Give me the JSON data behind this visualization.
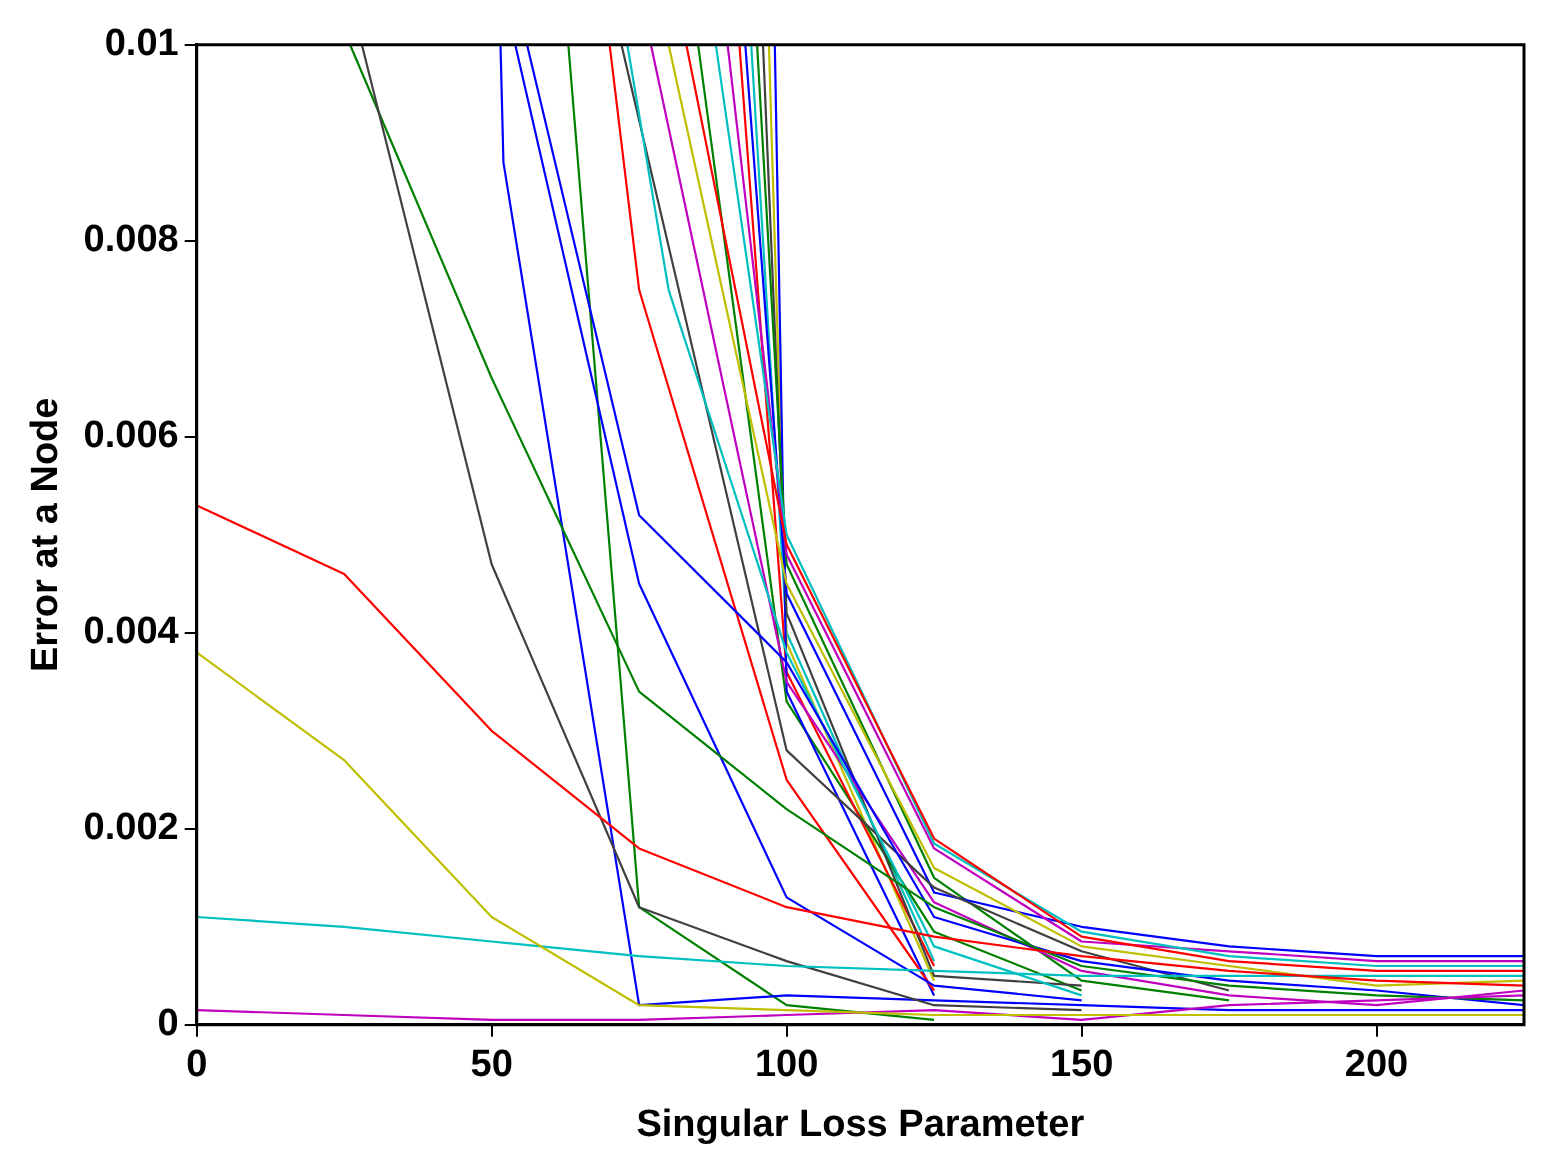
{
  "chart_data": {
    "type": "line",
    "xlabel": "Singular Loss Parameter",
    "ylabel": "Error at a Node",
    "xlim": [
      0,
      225
    ],
    "ylim": [
      0,
      0.01
    ],
    "xticks": [
      0,
      50,
      100,
      150,
      200
    ],
    "yticks": [
      0,
      0.002,
      0.004,
      0.006,
      0.008,
      0.01
    ],
    "series": [
      {
        "color": "#ff0000",
        "x": [
          0,
          25,
          50,
          75,
          100,
          125,
          150,
          175,
          200,
          225
        ],
        "values": [
          0.0053,
          0.0046,
          0.003,
          0.0018,
          0.0012,
          0.0009,
          0.0007,
          0.00055,
          0.00045,
          0.0004
        ]
      },
      {
        "color": "#bfbf00",
        "x": [
          0,
          25,
          50,
          75,
          100,
          125,
          150,
          175,
          200,
          225
        ],
        "values": [
          0.0038,
          0.0027,
          0.0011,
          0.0002,
          0.00015,
          0.0001,
          0.0001,
          0.0001,
          0.0001,
          0.0001
        ]
      },
      {
        "color": "#00bfbf",
        "x": [
          0,
          25,
          50,
          75,
          100,
          125,
          150,
          175,
          200,
          225
        ],
        "values": [
          0.0011,
          0.001,
          0.00085,
          0.0007,
          0.0006,
          0.00055,
          0.0005,
          0.0005,
          0.0005,
          0.0005
        ]
      },
      {
        "color": "#bf00bf",
        "x": [
          0,
          25,
          50,
          75,
          100,
          125,
          150,
          175,
          200,
          225
        ],
        "values": [
          0.00015,
          0.0001,
          5e-05,
          5e-05,
          0.0001,
          0.00015,
          5e-05,
          0.0002,
          0.00025,
          0.0003
        ]
      },
      {
        "color": "#404040",
        "x": [
          28,
          50,
          75,
          100,
          125,
          150
        ],
        "values": [
          0.01,
          0.0047,
          0.0012,
          0.00065,
          0.0002,
          0.00015
        ]
      },
      {
        "color": "#008000",
        "x": [
          26,
          50,
          75,
          100,
          125,
          150,
          175,
          200,
          225
        ],
        "values": [
          0.01,
          0.0066,
          0.0034,
          0.0022,
          0.0012,
          0.0006,
          0.0004,
          0.0003,
          0.00025
        ]
      },
      {
        "color": "#0000ff",
        "x": [
          51.5,
          52,
          75,
          100,
          125,
          150,
          175,
          200,
          225
        ],
        "values": [
          0.01,
          0.0088,
          0.0002,
          0.0003,
          0.00025,
          0.0002,
          0.00015,
          0.00015,
          0.00015
        ]
      },
      {
        "color": "#0000ff",
        "x": [
          54,
          75,
          100,
          125,
          150
        ],
        "values": [
          0.01,
          0.0045,
          0.0013,
          0.0004,
          0.00025
        ]
      },
      {
        "color": "#0000ff",
        "x": [
          56,
          75,
          100,
          125,
          150,
          175,
          200,
          225
        ],
        "values": [
          0.01,
          0.0052,
          0.0037,
          0.0011,
          0.00065,
          0.00045,
          0.00035,
          0.0002
        ]
      },
      {
        "color": "#008000",
        "x": [
          63,
          75,
          100,
          125
        ],
        "values": [
          0.01,
          0.0012,
          0.0002,
          5e-05
        ]
      },
      {
        "color": "#ff0000",
        "x": [
          70,
          75,
          100,
          125
        ],
        "values": [
          0.01,
          0.0075,
          0.0025,
          0.00035
        ]
      },
      {
        "color": "#00bfbf",
        "x": [
          73,
          80,
          100,
          125,
          150
        ],
        "values": [
          0.01,
          0.0075,
          0.0038,
          0.0008,
          0.0003
        ]
      },
      {
        "color": "#404040",
        "x": [
          72,
          100,
          125,
          150,
          175
        ],
        "values": [
          0.01,
          0.0028,
          0.0014,
          0.00075,
          0.00035
        ]
      },
      {
        "color": "#bf00bf",
        "x": [
          77,
          100,
          125,
          150,
          175,
          200,
          225
        ],
        "values": [
          0.01,
          0.0035,
          0.00125,
          0.00055,
          0.0003,
          0.0002,
          0.00035
        ]
      },
      {
        "color": "#bfbf00",
        "x": [
          80,
          100,
          125,
          150,
          175,
          200,
          225
        ],
        "values": [
          0.01,
          0.0045,
          0.0016,
          0.0008,
          0.0006,
          0.0004,
          0.00045
        ]
      },
      {
        "color": "#ff0000",
        "x": [
          83,
          100,
          125,
          150,
          175,
          200,
          225
        ],
        "values": [
          0.01,
          0.0049,
          0.0019,
          0.0009,
          0.00065,
          0.00055,
          0.00055
        ]
      },
      {
        "color": "#00bfbf",
        "x": [
          88,
          100,
          125,
          150,
          175,
          200,
          225
        ],
        "values": [
          0.01,
          0.005,
          0.00185,
          0.00095,
          0.0007,
          0.0006,
          0.0006
        ]
      },
      {
        "color": "#bf00bf",
        "x": [
          90,
          100,
          125,
          150,
          175,
          200,
          225
        ],
        "values": [
          0.01,
          0.0048,
          0.0018,
          0.00085,
          0.00075,
          0.00065,
          0.00065
        ]
      },
      {
        "color": "#0000ff",
        "x": [
          93,
          100,
          125,
          150,
          175,
          200,
          225
        ],
        "values": [
          0.01,
          0.0044,
          0.00135,
          0.001,
          0.0008,
          0.0007,
          0.0007
        ]
      },
      {
        "color": "#008000",
        "x": [
          95,
          100,
          125,
          150,
          175
        ],
        "values": [
          0.01,
          0.0047,
          0.0015,
          0.00045,
          0.00025
        ]
      },
      {
        "color": "#404040",
        "x": [
          96,
          100,
          125,
          150
        ],
        "values": [
          0.01,
          0.0042,
          0.0005,
          0.0004
        ]
      },
      {
        "color": "#0000ff",
        "x": [
          98,
          100,
          125
        ],
        "values": [
          0.01,
          0.0034,
          0.0003
        ]
      },
      {
        "color": "#ff0000",
        "x": [
          92,
          100,
          125
        ],
        "values": [
          0.01,
          0.0036,
          0.0006
        ]
      },
      {
        "color": "#008000",
        "x": [
          85,
          100,
          125,
          150
        ],
        "values": [
          0.01,
          0.0033,
          0.00095,
          0.00035
        ]
      },
      {
        "color": "#bfbf00",
        "x": [
          97,
          100,
          125
        ],
        "values": [
          0.01,
          0.0039,
          0.00045
        ]
      },
      {
        "color": "#00bfbf",
        "x": [
          94,
          100,
          125
        ],
        "values": [
          0.01,
          0.004,
          0.00065
        ]
      }
    ]
  }
}
